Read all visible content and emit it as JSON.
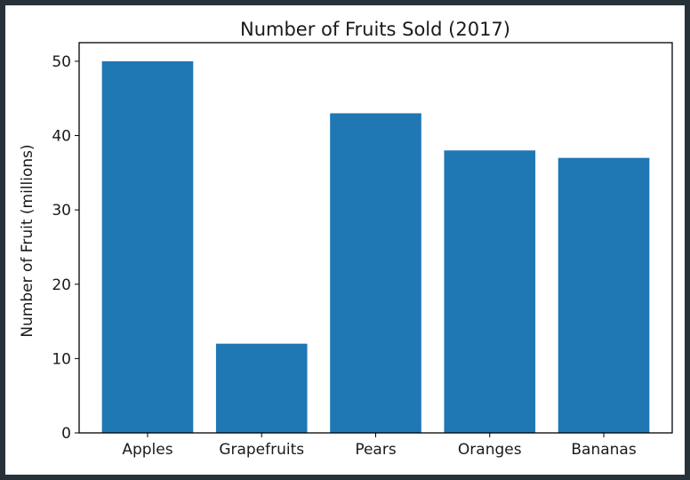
{
  "chart_data": {
    "type": "bar",
    "title": "Number of Fruits Sold (2017)",
    "xlabel": "",
    "ylabel": "Number of Fruit (millions)",
    "categories": [
      "Apples",
      "Grapefruits",
      "Pears",
      "Oranges",
      "Bananas"
    ],
    "values": [
      50,
      12,
      43,
      38,
      37
    ],
    "ylim": [
      0,
      52.5
    ],
    "yticks": [
      0,
      10,
      20,
      30,
      40,
      50
    ],
    "grid": false,
    "colors": {
      "bar": "#1f77b4",
      "axes": "#000000",
      "frame": "#263238"
    }
  }
}
